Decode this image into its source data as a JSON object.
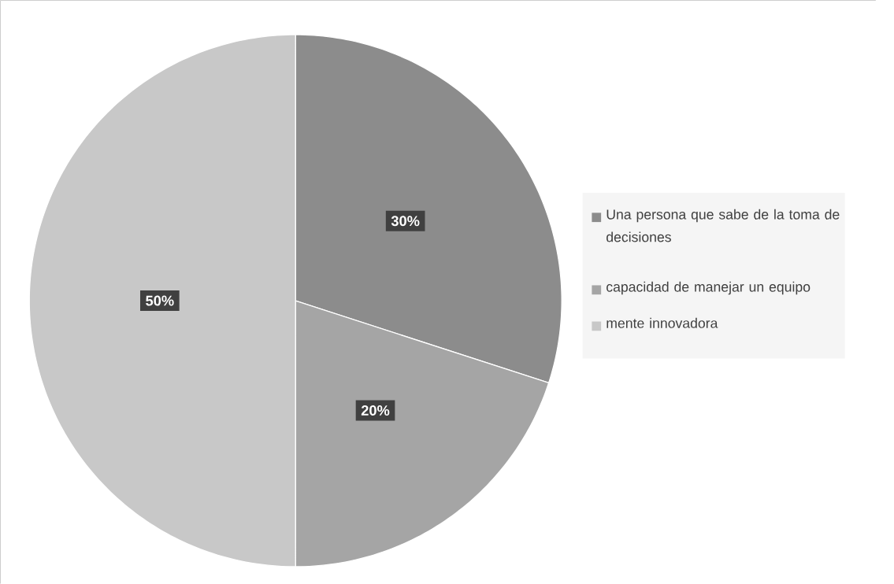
{
  "chart_data": {
    "type": "pie",
    "categories": [
      "Una persona que sabe de la toma de decisiones",
      "capacidad de manejar un equipo",
      "mente innovadora"
    ],
    "values": [
      30,
      20,
      50
    ],
    "colors": [
      "#8c8c8c",
      "#a5a5a5",
      "#c8c8c8"
    ],
    "value_labels": [
      "30%",
      "20%",
      "50%"
    ],
    "legend": "right"
  }
}
